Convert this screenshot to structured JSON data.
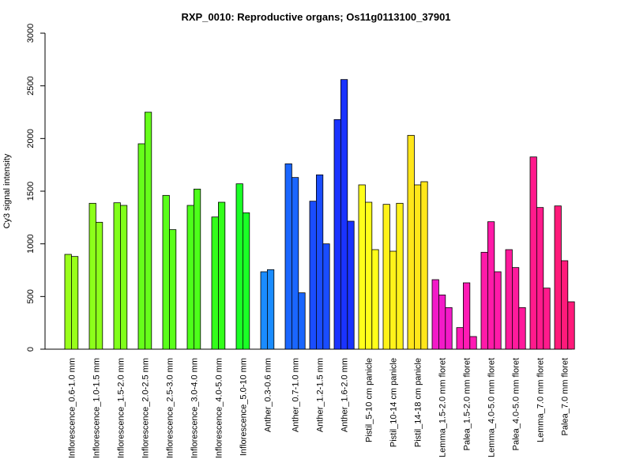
{
  "chart_data": {
    "type": "bar",
    "title": "RXP_0010: Reproductive organs; Os11g0113100_37901",
    "xlabel": "",
    "ylabel": "Cy3 signal intensity",
    "ylim": [
      0,
      3000
    ],
    "yticks": [
      "0",
      "500",
      "1000",
      "1500",
      "2000",
      "2500",
      "3000"
    ],
    "grid": false,
    "groups": [
      {
        "label": "Inflorescence_0.6-1.0 mm",
        "color": "#99FF1A",
        "values": [
          900,
          880
        ]
      },
      {
        "label": "Inflorescence_1.0-1.5 mm",
        "color": "#8CFF1A",
        "values": [
          1385,
          1205
        ]
      },
      {
        "label": "Inflorescence_1.5-2.0 mm",
        "color": "#80FF1A",
        "values": [
          1390,
          1365
        ]
      },
      {
        "label": "Inflorescence_2.0-2.5 mm",
        "color": "#66FF1A",
        "values": [
          1950,
          2250
        ]
      },
      {
        "label": "Inflorescence_2.5-3.0 mm",
        "color": "#5AFF1A",
        "values": [
          1460,
          1135
        ]
      },
      {
        "label": "Inflorescence_3.0-4.0 mm",
        "color": "#4DFF1A",
        "values": [
          1365,
          1520
        ]
      },
      {
        "label": "Inflorescence_4.0-5.0 mm",
        "color": "#33FF1A",
        "values": [
          1255,
          1395
        ]
      },
      {
        "label": "Inflorescence_5.0-10 mm",
        "color": "#1AFF26",
        "values": [
          1570,
          1295
        ]
      },
      {
        "label": "Anther_0.3-0.6 mm",
        "color": "#1A8CFF",
        "values": [
          735,
          755
        ]
      },
      {
        "label": "Anther_0.7-1.0 mm",
        "color": "#1A66FF",
        "values": [
          1760,
          1630,
          535
        ]
      },
      {
        "label": "Anther_1.2-1.5 mm",
        "color": "#1A4DFF",
        "values": [
          1405,
          1655,
          1000
        ]
      },
      {
        "label": "Anther_1.6-2.0 mm",
        "color": "#1A33FF",
        "values": [
          2180,
          2560,
          1215
        ]
      },
      {
        "label": "Pistil_5-10 cm panicle",
        "color": "#FFFF1A",
        "values": [
          1560,
          1395,
          945
        ]
      },
      {
        "label": "Pistil_10-14 cm panicle",
        "color": "#FFF21A",
        "values": [
          1375,
          930,
          1385
        ]
      },
      {
        "label": "Pistil_14-18 cm panicle",
        "color": "#FFE61A",
        "values": [
          2030,
          1560,
          1590
        ]
      },
      {
        "label": "Lemma_1.5-2.0 mm floret",
        "color": "#F21AC8",
        "values": [
          660,
          515,
          395
        ]
      },
      {
        "label": "Palea_1.5-2.0 mm floret",
        "color": "#FF1AB4",
        "values": [
          205,
          630,
          120
        ]
      },
      {
        "label": "Lemma_4.0-5.0 mm floret",
        "color": "#FF1AA8",
        "values": [
          920,
          1210,
          735
        ]
      },
      {
        "label": "Palea_4.0-5.0 mm floret",
        "color": "#FF1A9C",
        "values": [
          945,
          775,
          395
        ]
      },
      {
        "label": "Lemma_7.0 mm floret",
        "color": "#FF1A8C",
        "values": [
          1825,
          1345,
          580
        ]
      },
      {
        "label": "Palea_7.0 mm floret",
        "color": "#FF1A7A",
        "values": [
          1360,
          840,
          450
        ]
      }
    ]
  }
}
